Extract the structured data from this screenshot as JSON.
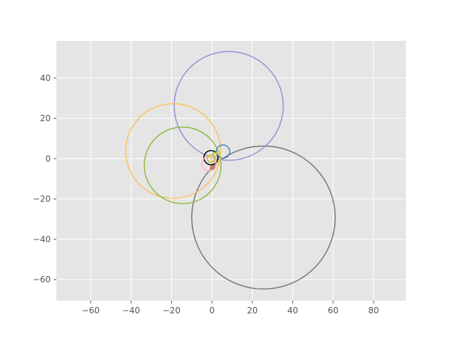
{
  "chart_data": {
    "type": "line",
    "title": "",
    "xlabel": "",
    "ylabel": "",
    "xlim": [
      -77,
      96
    ],
    "ylim": [
      -70.5,
      58.5
    ],
    "xticks": [
      -60,
      -40,
      -20,
      0,
      20,
      40,
      60,
      80
    ],
    "yticks": [
      -60,
      -40,
      -20,
      0,
      20,
      40
    ],
    "xtick_labels": [
      "−60",
      "−40",
      "−20",
      "0",
      "20",
      "40",
      "60",
      "80"
    ],
    "ytick_labels": [
      "−60",
      "−40",
      "−20",
      "0",
      "20",
      "40"
    ],
    "grid": true,
    "background": "#e5e5e5",
    "series": [
      {
        "shape": "circle",
        "cx": 25.5,
        "cy": -29.2,
        "r": 35.5,
        "color": "#777777"
      },
      {
        "shape": "circle",
        "cx": 8.3,
        "cy": 26.2,
        "r": 27.0,
        "color": "#988ed5"
      },
      {
        "shape": "circle",
        "cx": -19.2,
        "cy": 3.8,
        "r": 23.5,
        "color": "#fbc15e"
      },
      {
        "shape": "circle",
        "cx": -14.5,
        "cy": -3.3,
        "r": 19.0,
        "color": "#8eba42"
      },
      {
        "shape": "circle",
        "cx": 5.5,
        "cy": 3.5,
        "r": 3.3,
        "color": "#348abd"
      },
      {
        "shape": "circle",
        "cx": -0.5,
        "cy": 0.5,
        "r": 3.5,
        "color": "#000000"
      },
      {
        "shape": "circle",
        "cx": -1.5,
        "cy": -2.5,
        "r": 3.5,
        "color": "#ffb5b8"
      },
      {
        "shape": "circle",
        "cx": 2.0,
        "cy": 0.5,
        "r": 2.5,
        "color": "#fbc15e"
      },
      {
        "shape": "circle",
        "cx": -0.5,
        "cy": 0.0,
        "r": 1.8,
        "color": "#bcbd22"
      },
      {
        "shape": "circle",
        "cx": 0.3,
        "cy": -4.3,
        "r": 0.9,
        "color": "#e24a33"
      },
      {
        "shape": "circle",
        "cx": 1.5,
        "cy": 2.0,
        "r": 1.0,
        "color": "#8eba42"
      }
    ]
  }
}
